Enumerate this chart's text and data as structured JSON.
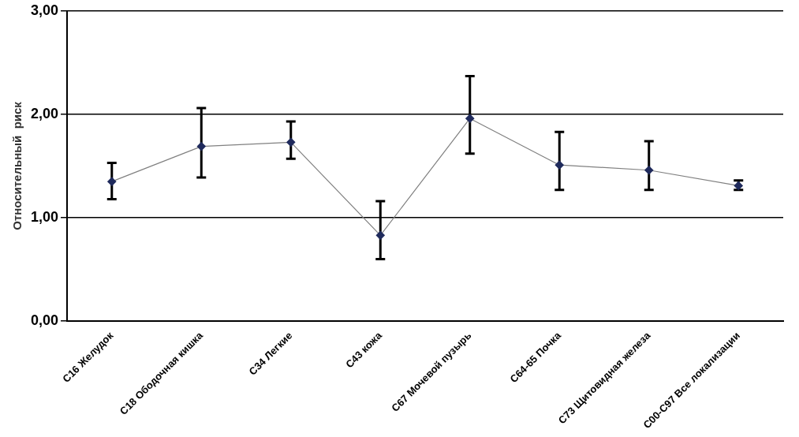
{
  "chart_data": {
    "type": "line",
    "ylabel": "Относительный  риск",
    "categories": [
      "C16 Желудок",
      "C18 Ободочная кишка",
      "C34 Легкие",
      "C43 кожа",
      "C67 Мочевой пузырь",
      "C64-65 Почка",
      "C73 Щитовидная железа",
      "C00-C97 Все локализации"
    ],
    "series": [
      {
        "color": "#808080",
        "values": [
          1.35,
          1.69,
          1.73,
          0.83,
          1.96,
          1.51,
          1.46,
          1.31
        ],
        "errors": [
          [
            1.18,
            1.53
          ],
          [
            1.39,
            2.06
          ],
          [
            1.57,
            1.93
          ],
          [
            0.6,
            1.16
          ],
          [
            1.62,
            2.37
          ],
          [
            1.27,
            1.83
          ],
          [
            1.27,
            1.74
          ],
          [
            1.27,
            1.36
          ]
        ]
      }
    ],
    "ylim": [
      0,
      3
    ],
    "yticks": [
      {
        "value": 0,
        "label": "0,00"
      },
      {
        "value": 1,
        "label": "1,00"
      },
      {
        "value": 2,
        "label": "2,00"
      },
      {
        "value": 3,
        "label": "3,00"
      }
    ],
    "grid": "y",
    "legend": false,
    "marker": "diamond",
    "line_style": "solid"
  }
}
